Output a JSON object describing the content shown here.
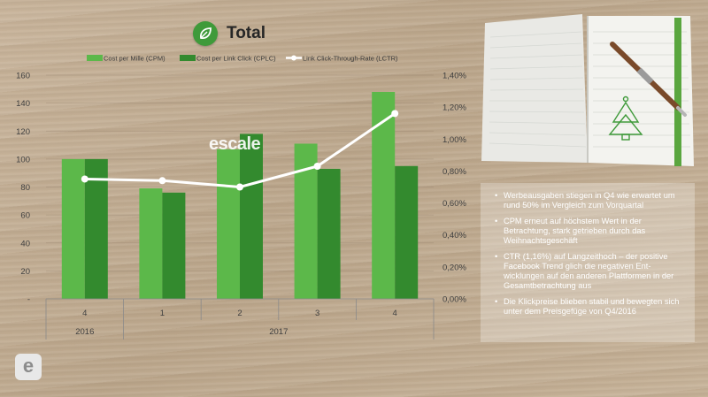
{
  "title": "Total",
  "colors": {
    "cpm": "#5cb84a",
    "cplc": "#338a2e",
    "lctr": "#ffffff",
    "accent": "#3f9a3a"
  },
  "chart_data": {
    "type": "bar",
    "title": "Total",
    "categories": [
      "4",
      "1",
      "2",
      "3",
      "4"
    ],
    "group_labels": [
      {
        "label": "2016",
        "span": 1
      },
      {
        "label": "2017",
        "span": 4
      }
    ],
    "series": [
      {
        "name": "Cost per Mille (CPM)",
        "type": "bar",
        "axis": "left",
        "values": [
          100,
          79,
          107,
          111,
          148
        ]
      },
      {
        "name": "Cost per Link Click (CPLC)",
        "type": "bar",
        "axis": "left",
        "values": [
          100,
          76,
          118,
          93,
          95
        ]
      },
      {
        "name": "Link Click-Through-Rate (LCTR)",
        "type": "line",
        "axis": "right",
        "values": [
          0.75,
          0.74,
          0.7,
          0.83,
          1.16
        ]
      }
    ],
    "y_left": {
      "ylim": [
        0,
        160
      ],
      "ticks": [
        "-",
        "20",
        "40",
        "60",
        "80",
        "100",
        "120",
        "140",
        "160"
      ]
    },
    "y_right": {
      "ylim": [
        0,
        1.4
      ],
      "ticks": [
        "0,00%",
        "0,20%",
        "0,40%",
        "0,60%",
        "0,80%",
        "1,00%",
        "1,20%",
        "1,40%"
      ]
    },
    "legend": "top",
    "grid": true
  },
  "notes": [
    "Werbeausgaben stiegen in Q4 wie erwartet um rund 50% im Vergleich zum Vorquartal",
    "CPM erneut auf höchstem Wert in der Betrachtung, stark getrieben durch das Weihnachtsgeschäft",
    "CTR (1,16%) auf Langzeithoch – der positive Facebook Trend glich die negativen Ent-wicklungen auf den anderen Plattformen in der Gesamtbetrachtung aus",
    "Die Klickpreise blieben stabil und bewegten sich unter dem Preisgefüge von Q4/2016"
  ],
  "watermark": "escale",
  "logo_letter": "e",
  "icons": {
    "title": "leaf-icon",
    "decor": "christmas-tree-icon"
  }
}
